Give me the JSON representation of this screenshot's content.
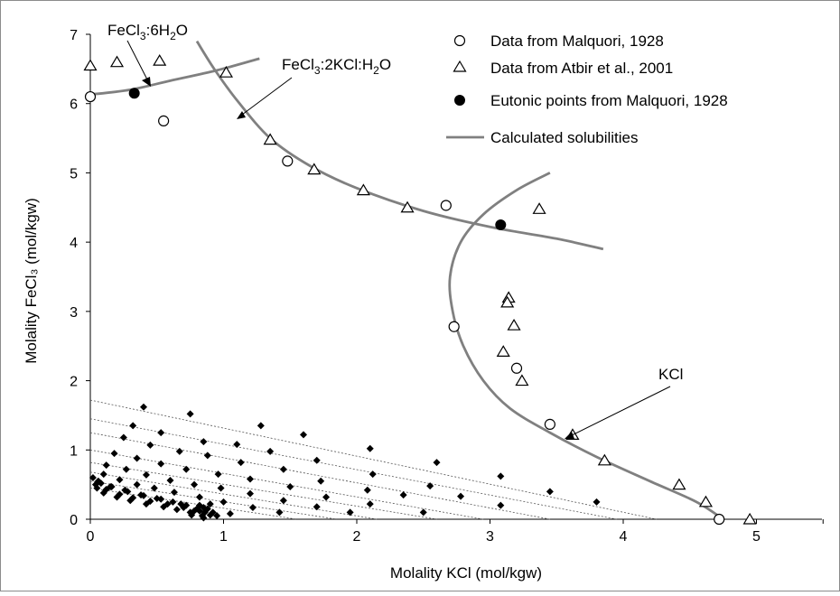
{
  "chart_data": {
    "type": "scatter",
    "xlabel": "Molality KCl (mol/kgw)",
    "ylabel": "Molality FeCl₃ (mol/kgw)",
    "xlim": [
      0,
      5.5
    ],
    "ylim": [
      0,
      7
    ],
    "xticks": [
      "0",
      "1",
      "2",
      "3",
      "4",
      "5"
    ],
    "yticks": [
      "0",
      "1",
      "2",
      "3",
      "4",
      "5",
      "6",
      "7"
    ],
    "grid": false,
    "legend_position": "top-right",
    "legend": [
      "Data from Malquori, 1928",
      "Data from Atbir et al., 2001",
      "Eutonic points from Malquori, 1928",
      "Calculated solubilities"
    ],
    "annotations": {
      "hexahydrate": "FeCl₃:6H₂O",
      "double_salt": "FeCl₃:2KCl:H₂O",
      "kcl": "KCl"
    },
    "series": [
      {
        "name": "Data from Malquori, 1928",
        "marker": "open-circle",
        "points": [
          [
            0.0,
            6.1
          ],
          [
            0.55,
            5.75
          ],
          [
            1.48,
            5.17
          ],
          [
            2.67,
            4.53
          ],
          [
            2.73,
            2.78
          ],
          [
            3.2,
            2.18
          ],
          [
            3.45,
            1.37
          ],
          [
            4.72,
            0.0
          ]
        ]
      },
      {
        "name": "Data from Atbir et al., 2001",
        "marker": "open-triangle",
        "points": [
          [
            0.0,
            6.55
          ],
          [
            0.2,
            6.6
          ],
          [
            0.52,
            6.62
          ],
          [
            1.02,
            6.45
          ],
          [
            1.35,
            5.48
          ],
          [
            1.68,
            5.05
          ],
          [
            2.05,
            4.75
          ],
          [
            2.38,
            4.5
          ],
          [
            3.37,
            4.48
          ],
          [
            3.14,
            3.2
          ],
          [
            3.13,
            3.13
          ],
          [
            3.18,
            2.8
          ],
          [
            3.1,
            2.42
          ],
          [
            3.24,
            2.0
          ],
          [
            3.62,
            1.22
          ],
          [
            3.86,
            0.85
          ],
          [
            4.42,
            0.5
          ],
          [
            4.62,
            0.25
          ],
          [
            4.95,
            0.0
          ]
        ]
      },
      {
        "name": "Eutonic points from Malquori, 1928",
        "marker": "filled-circle",
        "points": [
          [
            0.33,
            6.15
          ],
          [
            3.08,
            4.25
          ]
        ]
      },
      {
        "name": "Calculated solubilities",
        "marker": "line",
        "curves": [
          [
            [
              0.0,
              6.13
            ],
            [
              0.3,
              6.2
            ],
            [
              0.6,
              6.33
            ],
            [
              0.95,
              6.48
            ],
            [
              1.27,
              6.65
            ]
          ],
          [
            [
              0.8,
              6.9
            ],
            [
              0.93,
              6.5
            ],
            [
              1.1,
              6.05
            ],
            [
              1.35,
              5.5
            ],
            [
              1.65,
              5.1
            ],
            [
              2.0,
              4.78
            ],
            [
              2.5,
              4.45
            ],
            [
              3.0,
              4.22
            ],
            [
              3.5,
              4.05
            ],
            [
              3.85,
              3.9
            ]
          ],
          [
            [
              3.45,
              5.0
            ],
            [
              3.2,
              4.75
            ],
            [
              2.95,
              4.4
            ],
            [
              2.78,
              4.0
            ],
            [
              2.7,
              3.5
            ],
            [
              2.72,
              3.0
            ],
            [
              2.8,
              2.5
            ],
            [
              2.95,
              2.0
            ],
            [
              3.15,
              1.6
            ],
            [
              3.45,
              1.25
            ],
            [
              3.8,
              0.9
            ],
            [
              4.2,
              0.55
            ],
            [
              4.55,
              0.25
            ],
            [
              4.75,
              0.0
            ]
          ]
        ]
      },
      {
        "name": "",
        "marker": "filled-diamond",
        "points": [
          [
            0.75,
            1.52
          ],
          [
            0.4,
            1.62
          ],
          [
            1.28,
            1.35
          ],
          [
            1.6,
            1.22
          ],
          [
            2.1,
            1.02
          ],
          [
            2.6,
            0.82
          ],
          [
            3.08,
            0.62
          ],
          [
            3.45,
            0.4
          ],
          [
            3.8,
            0.25
          ],
          [
            0.32,
            1.35
          ],
          [
            0.53,
            1.25
          ],
          [
            0.85,
            1.12
          ],
          [
            1.1,
            1.08
          ],
          [
            1.35,
            0.98
          ],
          [
            1.7,
            0.85
          ],
          [
            2.12,
            0.65
          ],
          [
            2.55,
            0.48
          ],
          [
            3.08,
            0.2
          ],
          [
            0.25,
            1.18
          ],
          [
            0.45,
            1.07
          ],
          [
            0.67,
            0.98
          ],
          [
            0.88,
            0.92
          ],
          [
            1.13,
            0.82
          ],
          [
            1.45,
            0.72
          ],
          [
            1.73,
            0.55
          ],
          [
            2.08,
            0.42
          ],
          [
            2.35,
            0.35
          ],
          [
            2.78,
            0.33
          ],
          [
            0.18,
            0.95
          ],
          [
            0.35,
            0.88
          ],
          [
            0.53,
            0.8
          ],
          [
            0.72,
            0.72
          ],
          [
            0.96,
            0.65
          ],
          [
            1.2,
            0.58
          ],
          [
            1.5,
            0.47
          ],
          [
            1.77,
            0.32
          ],
          [
            2.1,
            0.22
          ],
          [
            2.5,
            0.1
          ],
          [
            0.12,
            0.78
          ],
          [
            0.27,
            0.72
          ],
          [
            0.42,
            0.64
          ],
          [
            0.6,
            0.56
          ],
          [
            0.78,
            0.5
          ],
          [
            0.98,
            0.45
          ],
          [
            1.2,
            0.37
          ],
          [
            1.45,
            0.27
          ],
          [
            1.7,
            0.18
          ],
          [
            1.95,
            0.1
          ],
          [
            0.1,
            0.65
          ],
          [
            0.22,
            0.57
          ],
          [
            0.35,
            0.5
          ],
          [
            0.48,
            0.45
          ],
          [
            0.63,
            0.39
          ],
          [
            0.82,
            0.32
          ],
          [
            1.0,
            0.25
          ],
          [
            1.22,
            0.17
          ],
          [
            1.42,
            0.1
          ],
          [
            0.06,
            0.55
          ],
          [
            0.15,
            0.47
          ],
          [
            0.28,
            0.4
          ],
          [
            0.4,
            0.34
          ],
          [
            0.53,
            0.29
          ],
          [
            0.68,
            0.22
          ],
          [
            0.85,
            0.17
          ],
          [
            1.05,
            0.08
          ],
          [
            0.04,
            0.5
          ],
          [
            0.12,
            0.43
          ],
          [
            0.22,
            0.36
          ],
          [
            0.32,
            0.31
          ],
          [
            0.45,
            0.26
          ],
          [
            0.58,
            0.22
          ],
          [
            0.7,
            0.17
          ],
          [
            0.82,
            0.12
          ],
          [
            0.9,
            0.06
          ],
          [
            0.02,
            0.6
          ],
          [
            0.08,
            0.52
          ],
          [
            0.16,
            0.47
          ],
          [
            0.26,
            0.42
          ],
          [
            0.38,
            0.35
          ],
          [
            0.5,
            0.3
          ],
          [
            0.62,
            0.25
          ],
          [
            0.72,
            0.2
          ],
          [
            0.8,
            0.15
          ],
          [
            0.86,
            0.1
          ],
          [
            0.05,
            0.45
          ],
          [
            0.1,
            0.38
          ],
          [
            0.2,
            0.32
          ],
          [
            0.3,
            0.27
          ],
          [
            0.42,
            0.22
          ],
          [
            0.55,
            0.18
          ],
          [
            0.65,
            0.14
          ],
          [
            0.75,
            0.1
          ],
          [
            0.84,
            0.05
          ],
          [
            0.78,
            0.12
          ],
          [
            0.82,
            0.2
          ],
          [
            0.88,
            0.15
          ],
          [
            0.92,
            0.1
          ],
          [
            0.95,
            0.05
          ],
          [
            0.85,
            0.02
          ],
          [
            0.9,
            0.22
          ],
          [
            0.76,
            0.06
          ]
        ]
      }
    ],
    "dotted_lines": [
      [
        [
          0.0,
          1.72
        ],
        [
          4.25,
          0.0
        ]
      ],
      [
        [
          0.0,
          1.45
        ],
        [
          3.95,
          0.0
        ]
      ],
      [
        [
          0.0,
          1.25
        ],
        [
          3.45,
          0.0
        ]
      ],
      [
        [
          0.0,
          1.0
        ],
        [
          2.95,
          0.0
        ]
      ],
      [
        [
          0.0,
          0.82
        ],
        [
          2.6,
          0.0
        ]
      ],
      [
        [
          0.0,
          0.68
        ],
        [
          2.15,
          0.0
        ]
      ],
      [
        [
          0.0,
          0.55
        ],
        [
          1.85,
          0.0
        ]
      ],
      [
        [
          0.0,
          0.45
        ],
        [
          1.55,
          0.0
        ]
      ]
    ]
  }
}
